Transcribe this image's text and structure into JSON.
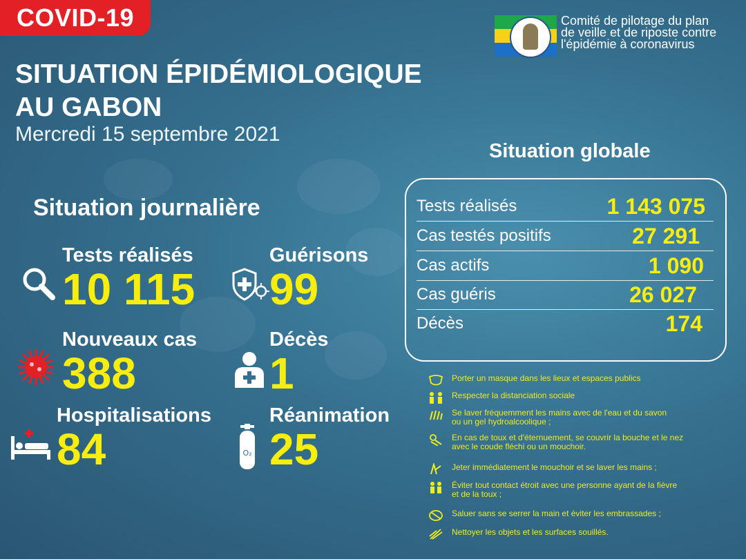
{
  "badge": "COVID-19",
  "title": {
    "line1": "SITUATION ÉPIDÉMIOLOGIQUE",
    "line2": "AU GABON"
  },
  "date": "Mercredi 15 septembre 2021",
  "org": {
    "lines": [
      "Comité de pilotage du plan",
      "de veille et de riposte contre",
      "l'épidémie à coronavirus"
    ],
    "colors": {
      "green": "#1ea84a",
      "yellow": "#f7d117",
      "blue": "#1e6fc8"
    }
  },
  "colors": {
    "badge": "#e32026",
    "value": "#f7ee0d",
    "advice": "#f0ec1e"
  },
  "journaliere": {
    "title": "Situation journalière",
    "tests": {
      "label": "Tests réalisés",
      "value": "10 115",
      "icon": "magnifier-icon"
    },
    "guerisons": {
      "label": "Guérisons",
      "value": "99",
      "icon": "shield-virus-icon"
    },
    "nouveaux": {
      "label": "Nouveaux cas",
      "value": "388",
      "icon": "virus-icon"
    },
    "deces": {
      "label": "Décès",
      "value": "1",
      "icon": "person-cross-icon"
    },
    "hospitalisations": {
      "label": "Hospitalisations",
      "value": "84",
      "icon": "hospital-bed-icon"
    },
    "reanimation": {
      "label": "Réanimation",
      "value": "25",
      "icon": "oxygen-tank-icon"
    }
  },
  "globale": {
    "title": "Situation globale",
    "rows": [
      {
        "label": "Tests réalisés",
        "value": "1 143 075"
      },
      {
        "label": "Cas testés positifs",
        "value": "27 291"
      },
      {
        "label": "Cas actifs",
        "value": "1 090"
      },
      {
        "label": "Cas guéris",
        "value": "26 027"
      },
      {
        "label": "Décès",
        "value": "174"
      }
    ]
  },
  "advice": [
    {
      "text": "Porter un masque dans les lieux et espaces publics",
      "icon": "mask-icon"
    },
    {
      "text": "Respecter la distanciation sociale",
      "icon": "distance-icon"
    },
    {
      "text": "Se laver fréquemment les mains avec de l'eau et du savon\n ou un gel hydroalcoolique ;",
      "icon": "handwash-icon"
    },
    {
      "text": "En cas de toux et d'éternuement, se couvrir la bouche et le nez\n avec le coude fléchi ou un mouchoir.",
      "icon": "cough-icon"
    },
    {
      "text": "Jeter immédiatement le mouchoir et se laver les mains ;",
      "icon": "tissue-icon"
    },
    {
      "text": "Éviter tout contact étroit avec une personne ayant de la fièvre\n et de la toux ;",
      "icon": "no-contact-icon"
    },
    {
      "text": "Saluer sans se serrer la main et éviter les embrassades ;",
      "icon": "no-handshake-icon"
    },
    {
      "text": "Nettoyer les objets et les surfaces souillés.",
      "icon": "cleaning-icon"
    }
  ]
}
